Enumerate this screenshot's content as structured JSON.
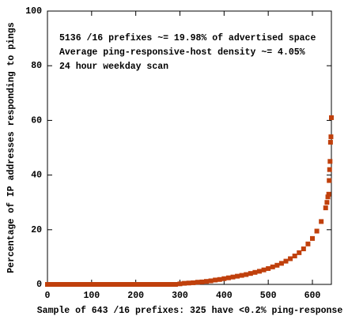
{
  "chart_data": {
    "type": "scatter",
    "annotations": [
      "5136 /16 prefixes ~= 19.98% of advertised space",
      "Average ping-responsive-host density ~= 4.05%",
      "24 hour weekday scan"
    ],
    "x_label": "Sample of 643 /16 prefixes: 325 have <0.2% ping-response",
    "y_label": "Percentage of IP addresses responding to pings",
    "color": "#c0400c",
    "x": [
      0,
      10,
      20,
      30,
      40,
      50,
      60,
      70,
      80,
      90,
      100,
      110,
      120,
      130,
      140,
      150,
      160,
      170,
      180,
      190,
      200,
      210,
      220,
      230,
      240,
      250,
      260,
      270,
      280,
      290,
      300,
      310,
      320,
      330,
      340,
      350,
      360,
      370,
      380,
      390,
      400,
      410,
      420,
      430,
      440,
      450,
      460,
      470,
      480,
      490,
      500,
      510,
      520,
      530,
      540,
      550,
      560,
      570,
      580,
      590,
      600,
      610,
      620,
      630,
      633,
      635,
      637,
      638,
      639,
      640,
      641,
      642,
      643
    ],
    "values": [
      0,
      0,
      0,
      0,
      0,
      0,
      0,
      0,
      0,
      0,
      0,
      0,
      0,
      0,
      0,
      0,
      0,
      0,
      0,
      0,
      0,
      0,
      0,
      0,
      0,
      0,
      0,
      0,
      0,
      0,
      0.2,
      0.4,
      0.5,
      0.6,
      0.8,
      0.9,
      1.1,
      1.3,
      1.6,
      1.8,
      2.1,
      2.4,
      2.7,
      3.0,
      3.3,
      3.6,
      4.0,
      4.4,
      4.8,
      5.3,
      5.8,
      6.4,
      7.0,
      7.7,
      8.5,
      9.4,
      10.4,
      11.6,
      13.0,
      14.8,
      16.8,
      19.5,
      23.0,
      28.0,
      30,
      32,
      33,
      38,
      42,
      45,
      52,
      54,
      61
    ],
    "xlim": [
      0,
      643
    ],
    "ylim": [
      0,
      100
    ],
    "xticks": [
      0,
      100,
      200,
      300,
      400,
      500,
      600
    ],
    "yticks": [
      0,
      20,
      40,
      60,
      80,
      100
    ]
  }
}
